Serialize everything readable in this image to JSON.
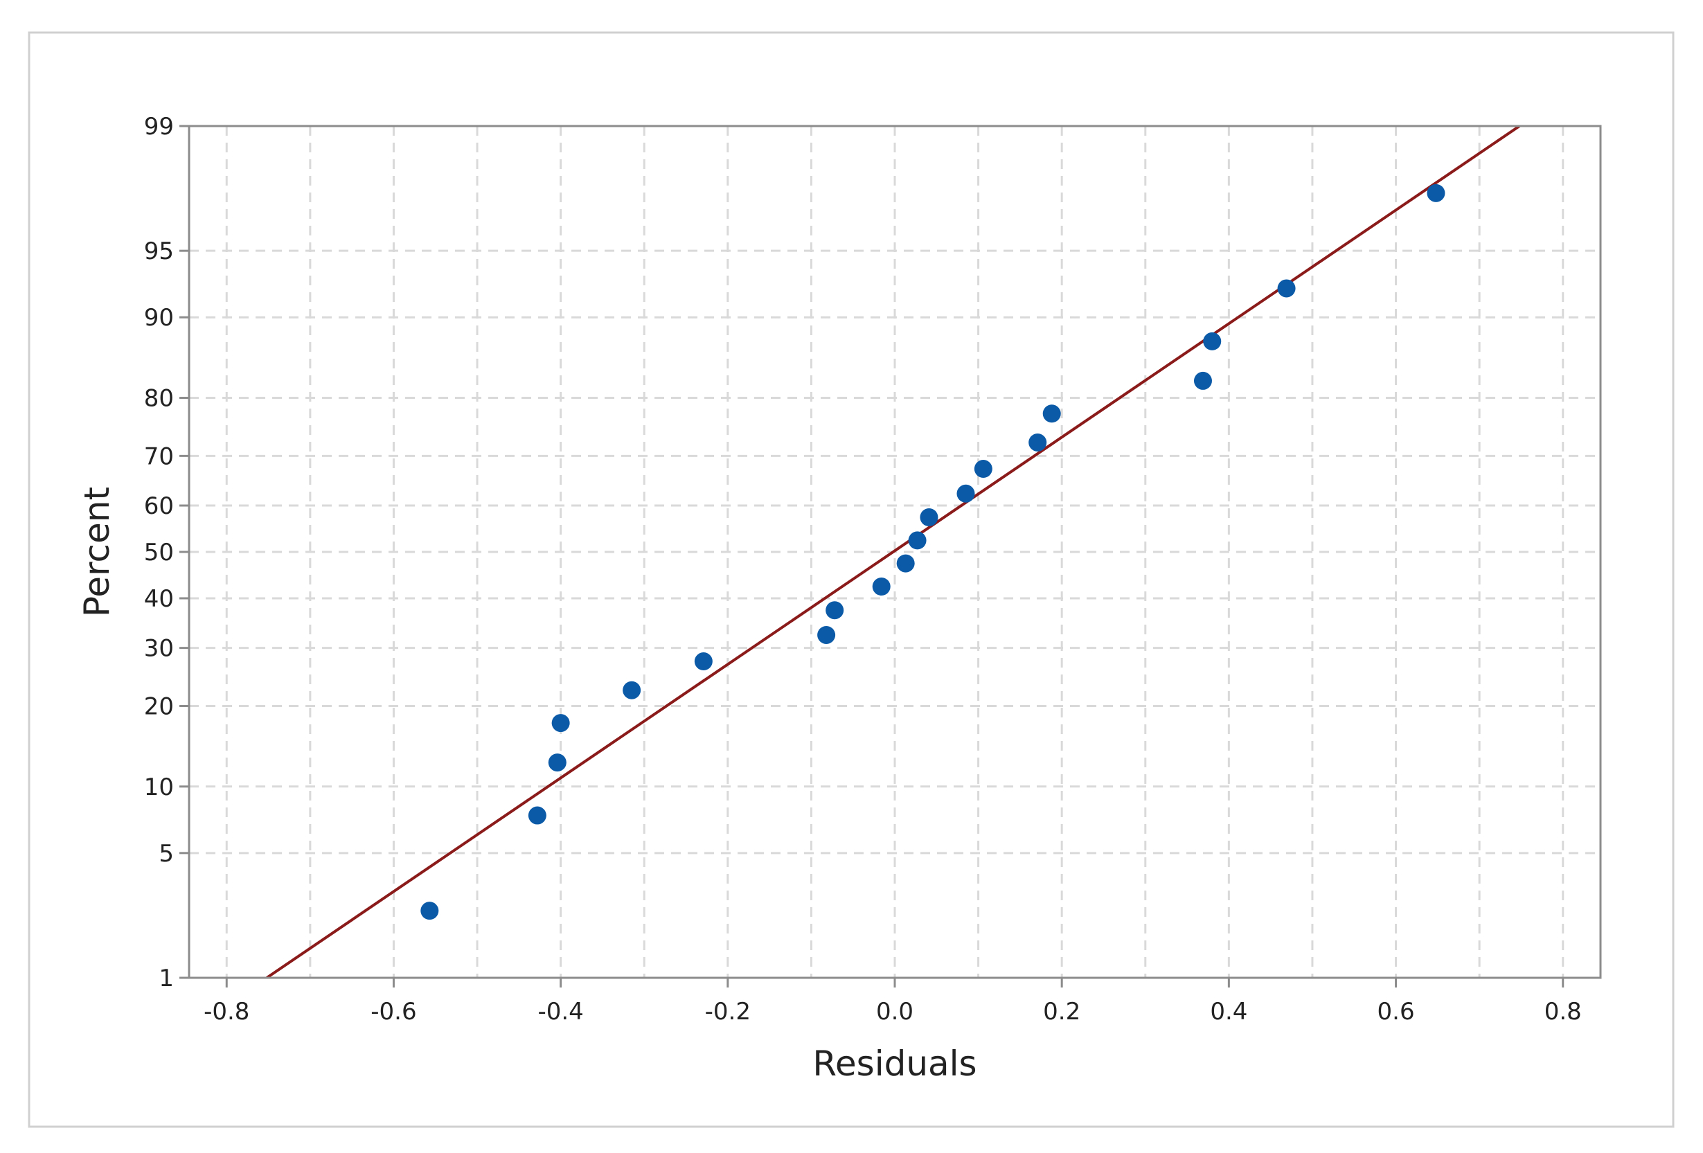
{
  "chart_data": {
    "type": "scatter",
    "subtype": "normal-probability-plot",
    "title": "",
    "xlabel": "Residuals",
    "ylabel": "Percent",
    "xlim": [
      -0.845,
      0.845
    ],
    "ylim_percent": [
      1,
      99
    ],
    "y_scale": "normal-probability",
    "grid": true,
    "legend": "none",
    "x_ticks": [
      -0.8,
      -0.6,
      -0.4,
      -0.2,
      0.0,
      0.2,
      0.4,
      0.6,
      0.8
    ],
    "x_tick_labels": [
      "-0.8",
      "-0.6",
      "-0.4",
      "-0.2",
      "0.0",
      "0.2",
      "0.4",
      "0.6",
      "0.8"
    ],
    "x_minor_grid": [
      -0.7,
      -0.5,
      -0.3,
      -0.1,
      0.1,
      0.3,
      0.5,
      0.7
    ],
    "y_ticks": [
      1,
      5,
      10,
      20,
      30,
      40,
      50,
      60,
      70,
      80,
      90,
      95,
      99
    ],
    "y_tick_labels": [
      "1",
      "5",
      "10",
      "20",
      "30",
      "40",
      "50",
      "60",
      "70",
      "80",
      "90",
      "95",
      "99"
    ],
    "points": [
      {
        "x": -0.557,
        "y": 2.5
      },
      {
        "x": -0.428,
        "y": 7.5
      },
      {
        "x": -0.404,
        "y": 12.5
      },
      {
        "x": -0.4,
        "y": 17.5
      },
      {
        "x": -0.315,
        "y": 22.5
      },
      {
        "x": -0.229,
        "y": 27.5
      },
      {
        "x": -0.082,
        "y": 32.5
      },
      {
        "x": -0.072,
        "y": 37.5
      },
      {
        "x": -0.016,
        "y": 42.5
      },
      {
        "x": 0.013,
        "y": 47.5
      },
      {
        "x": 0.027,
        "y": 52.5
      },
      {
        "x": 0.041,
        "y": 57.5
      },
      {
        "x": 0.085,
        "y": 62.5
      },
      {
        "x": 0.106,
        "y": 67.5
      },
      {
        "x": 0.171,
        "y": 72.5
      },
      {
        "x": 0.188,
        "y": 77.5
      },
      {
        "x": 0.369,
        "y": 82.5
      },
      {
        "x": 0.38,
        "y": 87.5
      },
      {
        "x": 0.469,
        "y": 92.5
      },
      {
        "x": 0.648,
        "y": 97.5
      }
    ],
    "fit_line": {
      "x_at_1pct": -0.752,
      "x_at_99pct": 0.748
    },
    "colors": {
      "points": "#0a5aa8",
      "fit_line": "#8b1a1a",
      "grid": "#d9d9d9",
      "plot_border": "#8c8c8c",
      "frame_border": "#d0d0d0"
    }
  }
}
